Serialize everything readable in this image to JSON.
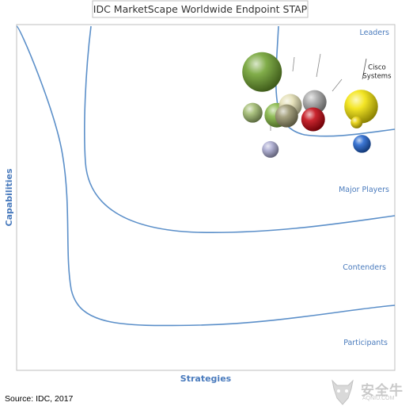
{
  "chart_data": {
    "type": "scatter",
    "title": "IDC MarketScape Worldwide Endpoint STAP",
    "xlabel": "Strategies",
    "ylabel": "Capabilities",
    "xlim": [
      0,
      100
    ],
    "ylim": [
      0,
      100
    ],
    "zones": [
      "Leaders",
      "Major Players",
      "Contenders",
      "Participants"
    ],
    "series": [
      {
        "points": [
          {
            "label": "",
            "x": 64.9,
            "y": 86.3,
            "size": 1.0,
            "color": "#6b9e2a"
          },
          {
            "label": "",
            "x": 62.4,
            "y": 74.5,
            "size": 0.5,
            "color": "#9db86b"
          },
          {
            "label": "",
            "x": 68.8,
            "y": 73.8,
            "size": 0.62,
            "color": "#7fb23c"
          },
          {
            "label": "",
            "x": 72.4,
            "y": 76.6,
            "size": 0.58,
            "color": "#e2ddb0"
          },
          {
            "label": "",
            "x": 78.8,
            "y": 77.6,
            "size": 0.6,
            "color": "#a3a3a3"
          },
          {
            "label": "",
            "x": 71.4,
            "y": 73.6,
            "size": 0.58,
            "color": "#96926a"
          },
          {
            "label": "",
            "x": 78.4,
            "y": 72.6,
            "size": 0.6,
            "color": "#c0000a"
          },
          {
            "label": "Cisco Systems",
            "x": 91.1,
            "y": 76.3,
            "size": 0.85,
            "color": "#f2e200"
          },
          {
            "label": "",
            "x": 89.9,
            "y": 71.7,
            "size": 0.3,
            "color": "#e8d000"
          },
          {
            "label": "",
            "x": 91.3,
            "y": 65.5,
            "size": 0.45,
            "color": "#1b5fcc"
          },
          {
            "label": "",
            "x": 67.1,
            "y": 63.9,
            "size": 0.42,
            "color": "#a7a7cf"
          }
        ]
      }
    ],
    "source": "Source: IDC, 2017"
  }
}
